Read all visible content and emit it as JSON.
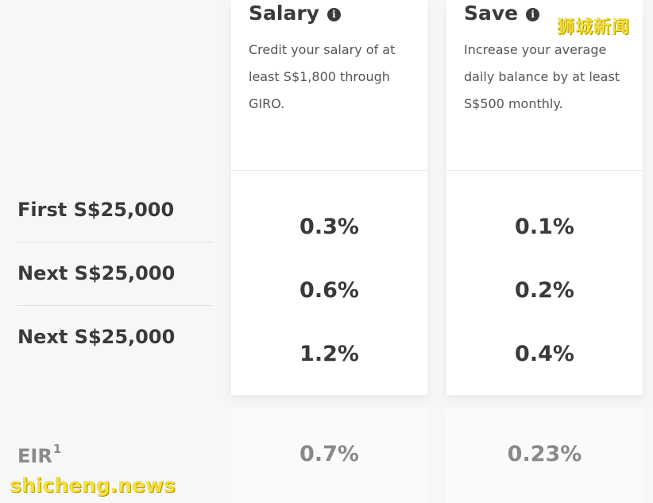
{
  "plans": [
    {
      "title": "Salary",
      "description": "Credit your salary of at least S$1,800 through GIRO.",
      "rates": [
        "0.3%",
        "0.6%",
        "1.2%"
      ],
      "eir": "0.7%"
    },
    {
      "title": "Save",
      "description": "Increase your average daily balance by at least S$500 monthly.",
      "rates": [
        "0.1%",
        "0.2%",
        "0.4%"
      ],
      "eir": "0.23%"
    }
  ],
  "tiers": [
    "First S$25,000",
    "Next S$25,000",
    "Next S$25,000"
  ],
  "info_icon_glyph": "i",
  "eir": {
    "label": "EIR",
    "footnote": "1"
  },
  "watermarks": {
    "top": "狮城新闻",
    "bottom": "shicheng.news"
  }
}
